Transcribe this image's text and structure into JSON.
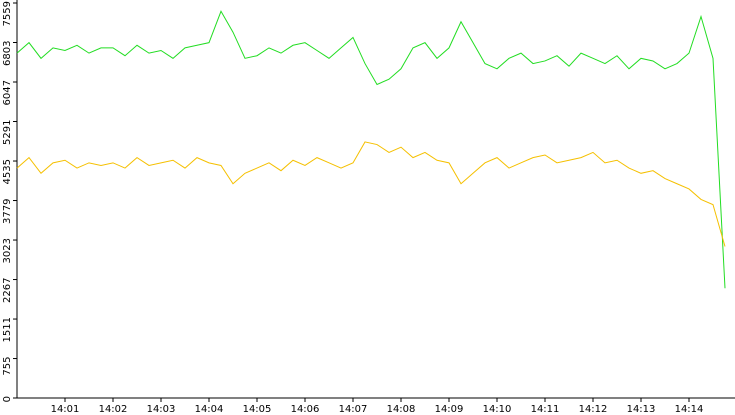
{
  "chart_data": {
    "type": "line",
    "categories": [
      null,
      null,
      null,
      null,
      "14:01",
      null,
      null,
      null,
      "14:02",
      null,
      null,
      null,
      "14:03",
      null,
      null,
      null,
      "14:04",
      null,
      null,
      null,
      "14:05",
      null,
      null,
      null,
      "14:06",
      null,
      null,
      null,
      "14:07",
      null,
      null,
      null,
      "14:08",
      null,
      null,
      null,
      "14:09",
      null,
      null,
      null,
      "14:10",
      null,
      null,
      null,
      "14:11",
      null,
      null,
      null,
      "14:12",
      null,
      null,
      null,
      "14:13",
      null,
      null,
      null,
      "14:14",
      null,
      null,
      null
    ],
    "series": [
      {
        "color": "#22dd22",
        "values": [
          6600,
          6800,
          6500,
          6700,
          6650,
          6750,
          6600,
          6700,
          6700,
          6550,
          6750,
          6600,
          6650,
          6500,
          6700,
          6750,
          6800,
          7400,
          7000,
          6500,
          6550,
          6700,
          6600,
          6750,
          6800,
          6650,
          6500,
          6700,
          6900,
          6400,
          6000,
          6100,
          6300,
          6700,
          6800,
          6500,
          6700,
          7200,
          6800,
          6400,
          6300,
          6500,
          6600,
          6400,
          6450,
          6550,
          6350,
          6600,
          6500,
          6400,
          6550,
          6300,
          6500,
          6450,
          6300,
          6400,
          6600,
          7300,
          6500,
          2100
        ]
      },
      {
        "color": "#f5c000",
        "values": [
          4400,
          4600,
          4300,
          4500,
          4550,
          4400,
          4500,
          4450,
          4500,
          4400,
          4600,
          4450,
          4500,
          4550,
          4400,
          4600,
          4500,
          4450,
          4100,
          4300,
          4400,
          4500,
          4350,
          4550,
          4450,
          4600,
          4500,
          4400,
          4500,
          4900,
          4850,
          4700,
          4800,
          4600,
          4700,
          4550,
          4500,
          4100,
          4300,
          4500,
          4600,
          4400,
          4500,
          4600,
          4650,
          4500,
          4550,
          4600,
          4700,
          4500,
          4550,
          4400,
          4300,
          4350,
          4200,
          4100,
          4000,
          3800,
          3700,
          2900
        ]
      }
    ],
    "ylim": [
      0,
      7559
    ],
    "yticks": [
      0,
      755,
      1511,
      2267,
      3023,
      3779,
      4535,
      5291,
      6047,
      6803,
      7559
    ]
  }
}
